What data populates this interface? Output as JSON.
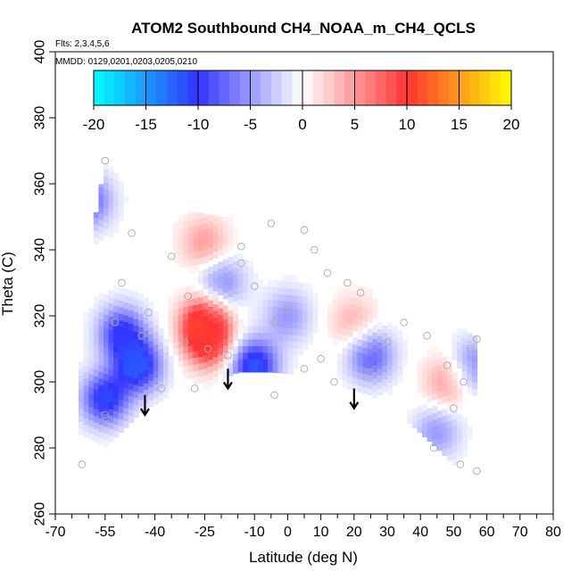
{
  "chart_data": {
    "type": "heatmap",
    "title": "ATOM2 Southbound CH4_NOAA_m_CH4_QCLS",
    "subtitle_flights": "Flts: 2,3,4,5,6",
    "subtitle_dates": "MMDD: 0129,0201,0203,0205,0210",
    "xlabel": "Latitude (deg N)",
    "ylabel": "Theta (C)",
    "xlim": [
      -70,
      80
    ],
    "ylim": [
      260,
      400
    ],
    "x_ticks": [
      -70,
      -55,
      -40,
      -25,
      -10,
      0,
      10,
      20,
      30,
      40,
      50,
      60,
      70,
      80
    ],
    "y_ticks": [
      260,
      280,
      300,
      320,
      340,
      360,
      380,
      400
    ],
    "colorbar": {
      "range": [
        -20,
        20
      ],
      "ticks": [
        -20,
        -15,
        -10,
        -5,
        0,
        5,
        10,
        15,
        20
      ],
      "colors": [
        "#00ffff",
        "#3333ff",
        "#ffffff",
        "#ff3333",
        "#ffff00"
      ]
    },
    "colors": {
      "boundary_fill": "#ffffff",
      "point_stroke": "#aaaaaa",
      "arrow": "#000000"
    },
    "features": [
      {
        "lat": -50,
        "theta": 315,
        "value": -10
      },
      {
        "lat": -45,
        "theta": 305,
        "value": -12
      },
      {
        "lat": -55,
        "theta": 295,
        "value": -11
      },
      {
        "lat": -25,
        "theta": 318,
        "value": 12
      },
      {
        "lat": -24,
        "theta": 312,
        "value": 9
      },
      {
        "lat": -10,
        "theta": 305,
        "value": -12
      },
      {
        "lat": -20,
        "theta": 330,
        "value": -6
      },
      {
        "lat": -25,
        "theta": 342,
        "value": 5
      },
      {
        "lat": 0,
        "theta": 320,
        "value": -5
      },
      {
        "lat": 25,
        "theta": 308,
        "value": -8
      },
      {
        "lat": 48,
        "theta": 300,
        "value": 5
      },
      {
        "lat": 45,
        "theta": 285,
        "value": -5
      },
      {
        "lat": -60,
        "theta": 355,
        "value": -8
      },
      {
        "lat": 56,
        "theta": 305,
        "value": -6
      },
      {
        "lat": 20,
        "theta": 318,
        "value": 4
      }
    ],
    "sample_points": [
      [
        -55,
        367
      ],
      [
        -47,
        345
      ],
      [
        -50,
        330
      ],
      [
        -52,
        318
      ],
      [
        -44,
        314
      ],
      [
        -55,
        290
      ],
      [
        -62,
        275
      ],
      [
        -35,
        338
      ],
      [
        -30,
        326
      ],
      [
        -24,
        310
      ],
      [
        -14,
        341
      ],
      [
        -14,
        336
      ],
      [
        -10,
        329
      ],
      [
        -5,
        348
      ],
      [
        5,
        346
      ],
      [
        8,
        340
      ],
      [
        12,
        333
      ],
      [
        18,
        330
      ],
      [
        22,
        327
      ],
      [
        -4,
        318
      ],
      [
        0,
        322
      ],
      [
        10,
        307
      ],
      [
        5,
        304
      ],
      [
        14,
        300
      ],
      [
        25,
        303
      ],
      [
        30,
        312
      ],
      [
        35,
        318
      ],
      [
        42,
        314
      ],
      [
        48,
        305
      ],
      [
        53,
        300
      ],
      [
        55,
        310
      ],
      [
        57,
        313
      ],
      [
        50,
        292
      ],
      [
        44,
        280
      ],
      [
        52,
        275
      ],
      [
        57,
        273
      ],
      [
        -38,
        298
      ],
      [
        -28,
        298
      ],
      [
        -4,
        296
      ],
      [
        -42,
        321
      ],
      [
        -31,
        312
      ],
      [
        -18,
        308
      ]
    ],
    "arrows": [
      {
        "lat": -43,
        "theta_top": 296,
        "theta_bottom": 290
      },
      {
        "lat": -18,
        "theta_top": 304,
        "theta_bottom": 298
      },
      {
        "lat": 20,
        "theta_top": 298,
        "theta_bottom": 292
      }
    ]
  }
}
